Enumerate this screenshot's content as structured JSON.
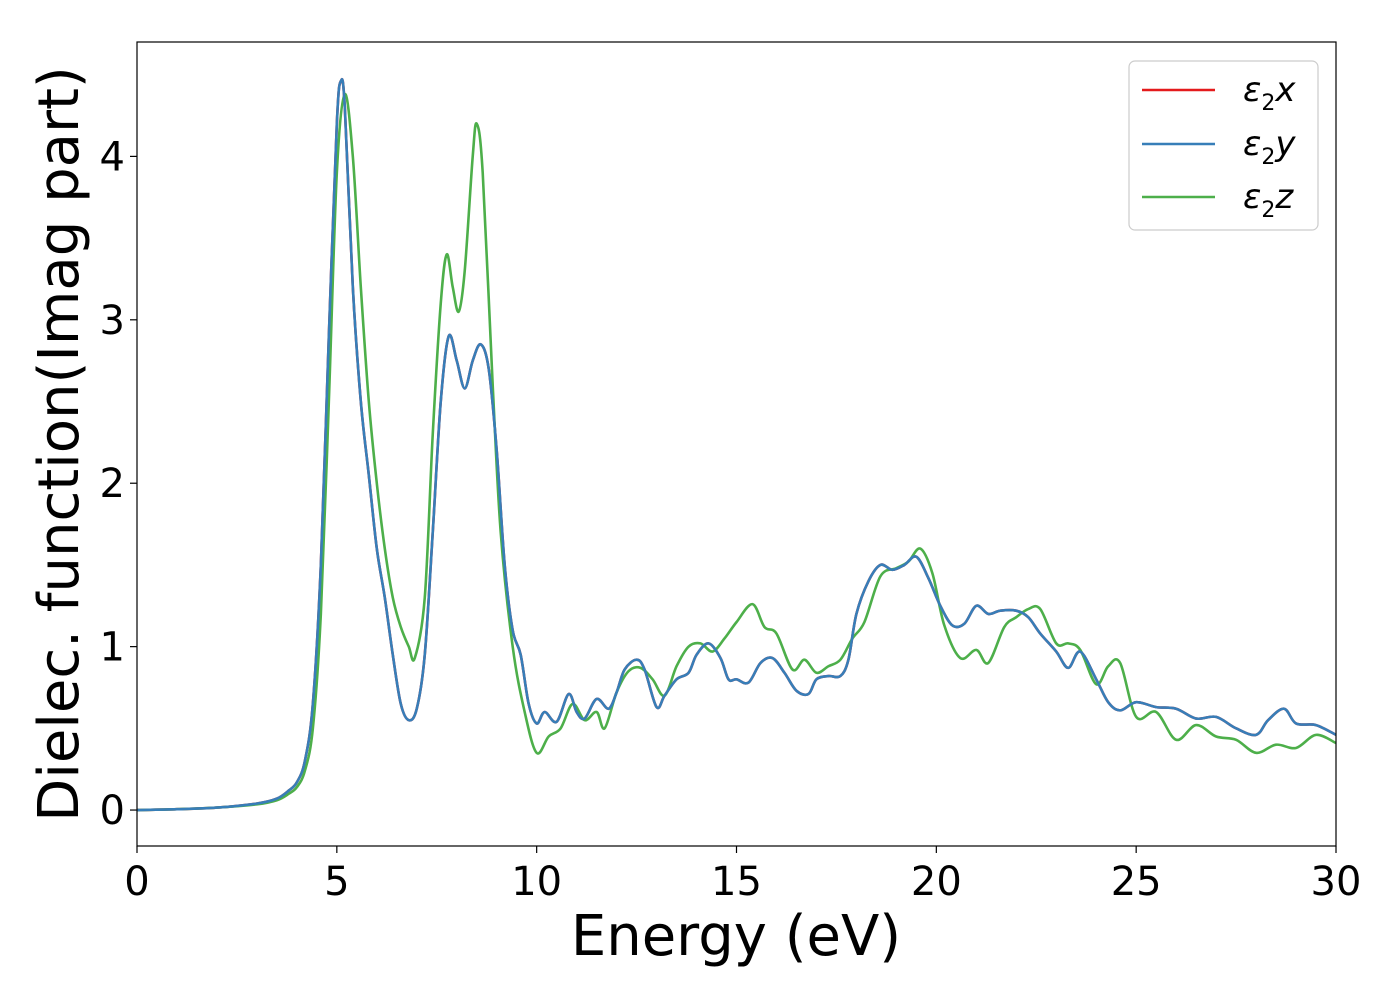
{
  "chart_data": {
    "type": "line",
    "xlabel": "Energy (eV)",
    "ylabel": "Dielec. function(Imag part)",
    "xlim": [
      0,
      30
    ],
    "ylim": [
      -0.22,
      4.7
    ],
    "xticks": [
      0,
      5,
      10,
      15,
      20,
      25,
      30
    ],
    "yticks": [
      0,
      1,
      2,
      3,
      4
    ],
    "grid": false,
    "legend_position": "top-right",
    "legend_labels": {
      "x": {
        "base": "ε",
        "sub": "2",
        "tail": "x"
      },
      "y": {
        "base": "ε",
        "sub": "2",
        "tail": "y"
      },
      "z": {
        "base": "ε",
        "sub": "2",
        "tail": "z"
      }
    },
    "series": [
      {
        "key": "x",
        "color": "#e41a1c",
        "points": [
          [
            0,
            0
          ],
          [
            1,
            0.005
          ],
          [
            2,
            0.015
          ],
          [
            3,
            0.04
          ],
          [
            3.5,
            0.07
          ],
          [
            3.8,
            0.12
          ],
          [
            4.0,
            0.17
          ],
          [
            4.2,
            0.3
          ],
          [
            4.4,
            0.65
          ],
          [
            4.6,
            1.5
          ],
          [
            4.8,
            2.9
          ],
          [
            5.0,
            4.2
          ],
          [
            5.1,
            4.46
          ],
          [
            5.2,
            4.3
          ],
          [
            5.4,
            3.2
          ],
          [
            5.6,
            2.5
          ],
          [
            5.8,
            2.05
          ],
          [
            6.0,
            1.6
          ],
          [
            6.2,
            1.3
          ],
          [
            6.4,
            0.95
          ],
          [
            6.6,
            0.65
          ],
          [
            6.8,
            0.55
          ],
          [
            7.0,
            0.62
          ],
          [
            7.2,
            0.95
          ],
          [
            7.4,
            1.7
          ],
          [
            7.6,
            2.5
          ],
          [
            7.8,
            2.9
          ],
          [
            8.0,
            2.75
          ],
          [
            8.2,
            2.58
          ],
          [
            8.4,
            2.75
          ],
          [
            8.6,
            2.85
          ],
          [
            8.8,
            2.7
          ],
          [
            9.0,
            2.2
          ],
          [
            9.2,
            1.5
          ],
          [
            9.4,
            1.1
          ],
          [
            9.6,
            0.95
          ],
          [
            9.8,
            0.65
          ],
          [
            10.0,
            0.53
          ],
          [
            10.2,
            0.6
          ],
          [
            10.5,
            0.54
          ],
          [
            10.8,
            0.71
          ],
          [
            11.0,
            0.6
          ],
          [
            11.2,
            0.56
          ],
          [
            11.5,
            0.68
          ],
          [
            11.8,
            0.62
          ],
          [
            12.0,
            0.72
          ],
          [
            12.2,
            0.86
          ],
          [
            12.5,
            0.92
          ],
          [
            12.7,
            0.86
          ],
          [
            13.0,
            0.63
          ],
          [
            13.2,
            0.7
          ],
          [
            13.5,
            0.8
          ],
          [
            13.8,
            0.84
          ],
          [
            14.0,
            0.95
          ],
          [
            14.3,
            1.02
          ],
          [
            14.6,
            0.93
          ],
          [
            14.8,
            0.8
          ],
          [
            15.0,
            0.8
          ],
          [
            15.3,
            0.78
          ],
          [
            15.6,
            0.9
          ],
          [
            15.9,
            0.93
          ],
          [
            16.2,
            0.84
          ],
          [
            16.5,
            0.73
          ],
          [
            16.8,
            0.71
          ],
          [
            17.0,
            0.8
          ],
          [
            17.3,
            0.82
          ],
          [
            17.6,
            0.82
          ],
          [
            17.8,
            0.92
          ],
          [
            18.0,
            1.2
          ],
          [
            18.3,
            1.4
          ],
          [
            18.6,
            1.5
          ],
          [
            18.9,
            1.47
          ],
          [
            19.2,
            1.5
          ],
          [
            19.5,
            1.55
          ],
          [
            19.8,
            1.42
          ],
          [
            20.1,
            1.25
          ],
          [
            20.4,
            1.13
          ],
          [
            20.7,
            1.14
          ],
          [
            21.0,
            1.25
          ],
          [
            21.3,
            1.2
          ],
          [
            21.6,
            1.22
          ],
          [
            22.0,
            1.22
          ],
          [
            22.3,
            1.18
          ],
          [
            22.6,
            1.08
          ],
          [
            23.0,
            0.97
          ],
          [
            23.3,
            0.87
          ],
          [
            23.6,
            0.97
          ],
          [
            24.0,
            0.8
          ],
          [
            24.3,
            0.66
          ],
          [
            24.6,
            0.61
          ],
          [
            25.0,
            0.66
          ],
          [
            25.5,
            0.63
          ],
          [
            26.0,
            0.62
          ],
          [
            26.5,
            0.56
          ],
          [
            27.0,
            0.57
          ],
          [
            27.5,
            0.5
          ],
          [
            28.0,
            0.46
          ],
          [
            28.3,
            0.55
          ],
          [
            28.7,
            0.62
          ],
          [
            29.0,
            0.53
          ],
          [
            29.5,
            0.52
          ],
          [
            30.0,
            0.46
          ]
        ]
      },
      {
        "key": "y",
        "color": "#377eb8",
        "points": [
          [
            0,
            0
          ],
          [
            1,
            0.005
          ],
          [
            2,
            0.015
          ],
          [
            3,
            0.04
          ],
          [
            3.5,
            0.07
          ],
          [
            3.8,
            0.12
          ],
          [
            4.0,
            0.17
          ],
          [
            4.2,
            0.3
          ],
          [
            4.4,
            0.65
          ],
          [
            4.6,
            1.5
          ],
          [
            4.8,
            2.9
          ],
          [
            5.0,
            4.2
          ],
          [
            5.1,
            4.46
          ],
          [
            5.2,
            4.3
          ],
          [
            5.4,
            3.2
          ],
          [
            5.6,
            2.5
          ],
          [
            5.8,
            2.05
          ],
          [
            6.0,
            1.6
          ],
          [
            6.2,
            1.3
          ],
          [
            6.4,
            0.95
          ],
          [
            6.6,
            0.65
          ],
          [
            6.8,
            0.55
          ],
          [
            7.0,
            0.62
          ],
          [
            7.2,
            0.95
          ],
          [
            7.4,
            1.7
          ],
          [
            7.6,
            2.5
          ],
          [
            7.8,
            2.9
          ],
          [
            8.0,
            2.75
          ],
          [
            8.2,
            2.58
          ],
          [
            8.4,
            2.75
          ],
          [
            8.6,
            2.85
          ],
          [
            8.8,
            2.7
          ],
          [
            9.0,
            2.2
          ],
          [
            9.2,
            1.5
          ],
          [
            9.4,
            1.1
          ],
          [
            9.6,
            0.95
          ],
          [
            9.8,
            0.65
          ],
          [
            10.0,
            0.53
          ],
          [
            10.2,
            0.6
          ],
          [
            10.5,
            0.54
          ],
          [
            10.8,
            0.71
          ],
          [
            11.0,
            0.6
          ],
          [
            11.2,
            0.56
          ],
          [
            11.5,
            0.68
          ],
          [
            11.8,
            0.62
          ],
          [
            12.0,
            0.72
          ],
          [
            12.2,
            0.86
          ],
          [
            12.5,
            0.92
          ],
          [
            12.7,
            0.86
          ],
          [
            13.0,
            0.63
          ],
          [
            13.2,
            0.7
          ],
          [
            13.5,
            0.8
          ],
          [
            13.8,
            0.84
          ],
          [
            14.0,
            0.95
          ],
          [
            14.3,
            1.02
          ],
          [
            14.6,
            0.93
          ],
          [
            14.8,
            0.8
          ],
          [
            15.0,
            0.8
          ],
          [
            15.3,
            0.78
          ],
          [
            15.6,
            0.9
          ],
          [
            15.9,
            0.93
          ],
          [
            16.2,
            0.84
          ],
          [
            16.5,
            0.73
          ],
          [
            16.8,
            0.71
          ],
          [
            17.0,
            0.8
          ],
          [
            17.3,
            0.82
          ],
          [
            17.6,
            0.82
          ],
          [
            17.8,
            0.92
          ],
          [
            18.0,
            1.2
          ],
          [
            18.3,
            1.4
          ],
          [
            18.6,
            1.5
          ],
          [
            18.9,
            1.47
          ],
          [
            19.2,
            1.5
          ],
          [
            19.5,
            1.55
          ],
          [
            19.8,
            1.42
          ],
          [
            20.1,
            1.25
          ],
          [
            20.4,
            1.13
          ],
          [
            20.7,
            1.14
          ],
          [
            21.0,
            1.25
          ],
          [
            21.3,
            1.2
          ],
          [
            21.6,
            1.22
          ],
          [
            22.0,
            1.22
          ],
          [
            22.3,
            1.18
          ],
          [
            22.6,
            1.08
          ],
          [
            23.0,
            0.97
          ],
          [
            23.3,
            0.87
          ],
          [
            23.6,
            0.97
          ],
          [
            24.0,
            0.8
          ],
          [
            24.3,
            0.66
          ],
          [
            24.6,
            0.61
          ],
          [
            25.0,
            0.66
          ],
          [
            25.5,
            0.63
          ],
          [
            26.0,
            0.62
          ],
          [
            26.5,
            0.56
          ],
          [
            27.0,
            0.57
          ],
          [
            27.5,
            0.5
          ],
          [
            28.0,
            0.46
          ],
          [
            28.3,
            0.55
          ],
          [
            28.7,
            0.62
          ],
          [
            29.0,
            0.53
          ],
          [
            29.5,
            0.52
          ],
          [
            30.0,
            0.46
          ]
        ]
      },
      {
        "key": "z",
        "color": "#4daf4a",
        "points": [
          [
            0,
            0
          ],
          [
            1,
            0.005
          ],
          [
            2,
            0.015
          ],
          [
            3,
            0.035
          ],
          [
            3.5,
            0.06
          ],
          [
            3.8,
            0.1
          ],
          [
            4.0,
            0.14
          ],
          [
            4.2,
            0.24
          ],
          [
            4.4,
            0.5
          ],
          [
            4.6,
            1.2
          ],
          [
            4.8,
            2.5
          ],
          [
            5.0,
            3.9
          ],
          [
            5.2,
            4.38
          ],
          [
            5.4,
            4.0
          ],
          [
            5.6,
            3.2
          ],
          [
            5.8,
            2.5
          ],
          [
            6.0,
            2.0
          ],
          [
            6.2,
            1.6
          ],
          [
            6.4,
            1.3
          ],
          [
            6.6,
            1.12
          ],
          [
            6.8,
            1.0
          ],
          [
            6.95,
            0.93
          ],
          [
            7.2,
            1.3
          ],
          [
            7.4,
            2.3
          ],
          [
            7.6,
            3.1
          ],
          [
            7.75,
            3.4
          ],
          [
            7.9,
            3.2
          ],
          [
            8.05,
            3.05
          ],
          [
            8.2,
            3.3
          ],
          [
            8.4,
            4.0
          ],
          [
            8.5,
            4.2
          ],
          [
            8.65,
            3.9
          ],
          [
            8.9,
            2.6
          ],
          [
            9.1,
            1.7
          ],
          [
            9.4,
            1.0
          ],
          [
            9.7,
            0.6
          ],
          [
            10.0,
            0.35
          ],
          [
            10.3,
            0.45
          ],
          [
            10.6,
            0.5
          ],
          [
            10.9,
            0.65
          ],
          [
            11.2,
            0.55
          ],
          [
            11.5,
            0.6
          ],
          [
            11.7,
            0.5
          ],
          [
            12.0,
            0.72
          ],
          [
            12.3,
            0.85
          ],
          [
            12.6,
            0.87
          ],
          [
            12.9,
            0.8
          ],
          [
            13.2,
            0.7
          ],
          [
            13.5,
            0.88
          ],
          [
            13.8,
            1.0
          ],
          [
            14.1,
            1.02
          ],
          [
            14.4,
            0.97
          ],
          [
            14.7,
            1.05
          ],
          [
            15.0,
            1.15
          ],
          [
            15.4,
            1.26
          ],
          [
            15.7,
            1.12
          ],
          [
            16.0,
            1.08
          ],
          [
            16.4,
            0.86
          ],
          [
            16.7,
            0.92
          ],
          [
            17.0,
            0.84
          ],
          [
            17.3,
            0.88
          ],
          [
            17.6,
            0.92
          ],
          [
            17.9,
            1.05
          ],
          [
            18.2,
            1.15
          ],
          [
            18.6,
            1.43
          ],
          [
            19.0,
            1.48
          ],
          [
            19.3,
            1.52
          ],
          [
            19.6,
            1.6
          ],
          [
            19.9,
            1.45
          ],
          [
            20.2,
            1.13
          ],
          [
            20.6,
            0.93
          ],
          [
            21.0,
            0.98
          ],
          [
            21.3,
            0.9
          ],
          [
            21.7,
            1.12
          ],
          [
            22.0,
            1.18
          ],
          [
            22.3,
            1.23
          ],
          [
            22.6,
            1.23
          ],
          [
            23.0,
            1.02
          ],
          [
            23.3,
            1.02
          ],
          [
            23.6,
            0.98
          ],
          [
            24.0,
            0.77
          ],
          [
            24.3,
            0.88
          ],
          [
            24.6,
            0.9
          ],
          [
            25.0,
            0.57
          ],
          [
            25.5,
            0.6
          ],
          [
            26.0,
            0.43
          ],
          [
            26.5,
            0.52
          ],
          [
            27.0,
            0.45
          ],
          [
            27.5,
            0.43
          ],
          [
            28.0,
            0.35
          ],
          [
            28.5,
            0.4
          ],
          [
            29.0,
            0.38
          ],
          [
            29.5,
            0.46
          ],
          [
            30.0,
            0.41
          ]
        ]
      }
    ]
  }
}
